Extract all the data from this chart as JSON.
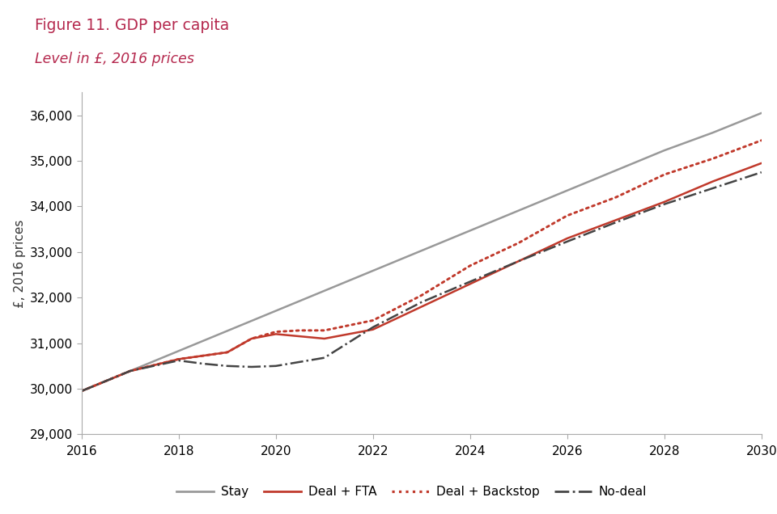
{
  "title_line1": "Figure 11. GDP per capita",
  "title_line2": "Level in £, 2016 prices",
  "title_bg_color": "#f2dada",
  "title_text_color": "#b5294e",
  "ylabel": "£, 2016 prices",
  "xlim": [
    2016,
    2030
  ],
  "ylim": [
    29000,
    36500
  ],
  "yticks": [
    29000,
    30000,
    31000,
    32000,
    33000,
    34000,
    35000,
    36000
  ],
  "xticks": [
    2016,
    2018,
    2020,
    2022,
    2024,
    2026,
    2028,
    2030
  ],
  "stay": {
    "x": [
      2016,
      2017,
      2018,
      2019,
      2020,
      2021,
      2022,
      2023,
      2024,
      2025,
      2026,
      2027,
      2028,
      2029,
      2030
    ],
    "y": [
      29950,
      30390,
      30830,
      31270,
      31710,
      32150,
      32590,
      33030,
      33470,
      33910,
      34350,
      34790,
      35230,
      35620,
      36050
    ],
    "color": "#999999",
    "linewidth": 1.8,
    "label": "Stay"
  },
  "deal_fta": {
    "x": [
      2016,
      2017,
      2018,
      2019,
      2019.5,
      2020,
      2020.5,
      2021,
      2022,
      2023,
      2024,
      2025,
      2026,
      2027,
      2028,
      2029,
      2030
    ],
    "y": [
      29950,
      30390,
      30650,
      30800,
      31100,
      31200,
      31150,
      31100,
      31300,
      31800,
      32300,
      32800,
      33300,
      33700,
      34100,
      34550,
      34950
    ],
    "color": "#c0392b",
    "linewidth": 1.8,
    "label": "Deal + FTA"
  },
  "deal_backstop": {
    "x": [
      2016,
      2017,
      2018,
      2019,
      2019.5,
      2020,
      2020.5,
      2021,
      2022,
      2023,
      2024,
      2025,
      2026,
      2027,
      2028,
      2029,
      2030
    ],
    "y": [
      29950,
      30390,
      30650,
      30800,
      31100,
      31250,
      31280,
      31280,
      31500,
      32050,
      32700,
      33200,
      33800,
      34200,
      34700,
      35050,
      35450
    ],
    "color": "#c0392b",
    "linewidth": 1.8,
    "label": "Deal + Backstop"
  },
  "no_deal": {
    "x": [
      2016,
      2017,
      2018,
      2018.5,
      2019,
      2019.5,
      2020,
      2021,
      2022,
      2023,
      2024,
      2025,
      2026,
      2027,
      2028,
      2029,
      2030
    ],
    "y": [
      29950,
      30390,
      30620,
      30550,
      30500,
      30480,
      30500,
      30680,
      31350,
      31900,
      32350,
      32800,
      33230,
      33650,
      34050,
      34400,
      34750
    ],
    "color": "#444444",
    "linewidth": 1.8,
    "label": "No-deal"
  },
  "bg_color": "#ffffff",
  "tick_label_fontsize": 11,
  "ylabel_fontsize": 11,
  "legend_fontsize": 11
}
